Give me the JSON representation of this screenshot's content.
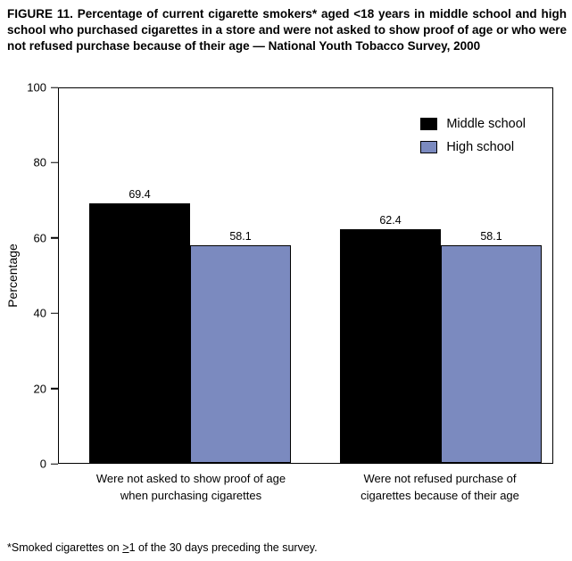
{
  "figure": {
    "title": "FIGURE 11. Percentage of current cigarette smokers* aged <18 years in middle school and high school who purchased cigarettes in a store and were not asked to show proof of age or who were not refused purchase because of their age — National Youth Tobacco Survey, 2000",
    "footnote": {
      "pre": "*Smoked cigarettes on ",
      "geq": ">",
      "post": "1 of the 30 days preceding the survey."
    }
  },
  "chart_data": {
    "type": "bar",
    "categories": [
      "Were not asked to show proof of age when purchasing cigarettes",
      "Were not refused purchase of cigarettes because of their age"
    ],
    "series": [
      {
        "name": "Middle school",
        "color": "#000000",
        "values": [
          69.4,
          62.4
        ]
      },
      {
        "name": "High school",
        "color": "#7b8abf",
        "values": [
          58.1,
          58.1
        ]
      }
    ],
    "title": "",
    "xlabel": "",
    "ylabel": "Percentage",
    "ylim": [
      0,
      100
    ],
    "yticks": [
      0,
      20,
      40,
      60,
      80,
      100
    ],
    "grid": false,
    "legend_position": "top-right"
  }
}
